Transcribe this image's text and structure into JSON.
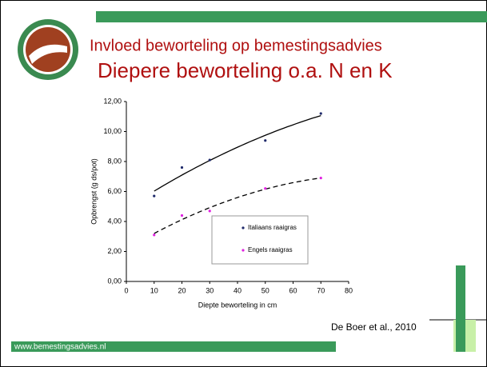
{
  "slide": {
    "title": "Invloed beworteling op bemestingsadvies",
    "subtitle": "Diepere beworteling o.a. N en K",
    "source": "De Boer et al., 2010",
    "footer": "www.bemestingsadvies.nl"
  },
  "chart_data": {
    "type": "scatter",
    "xlabel": "Diepte beworteling in cm",
    "ylabel": "Opbrengst (g ds/pot)",
    "xlim": [
      0,
      80
    ],
    "xticks": [
      0,
      10,
      20,
      30,
      40,
      50,
      60,
      70,
      80
    ],
    "ylim": [
      0,
      12
    ],
    "yticks": [
      {
        "value": 0,
        "label": "0,00"
      },
      {
        "value": 2,
        "label": "2,00"
      },
      {
        "value": 4,
        "label": "4,00"
      },
      {
        "value": 6,
        "label": "6,00"
      },
      {
        "value": 8,
        "label": "8,00"
      },
      {
        "value": 10,
        "label": "10,00"
      },
      {
        "value": 12,
        "label": "12,00"
      }
    ],
    "series": [
      {
        "name": "Italiaans raaigras",
        "color": "#1f2a6b",
        "trendline": "solid",
        "x": [
          10,
          20,
          30,
          50,
          70
        ],
        "values": [
          5.7,
          7.6,
          8.1,
          9.4,
          11.2
        ]
      },
      {
        "name": "Engels raaigras",
        "color": "#e020e0",
        "trendline": "dashed",
        "x": [
          10,
          20,
          30,
          50,
          70
        ],
        "values": [
          3.1,
          4.4,
          4.7,
          6.2,
          6.9
        ]
      }
    ]
  }
}
